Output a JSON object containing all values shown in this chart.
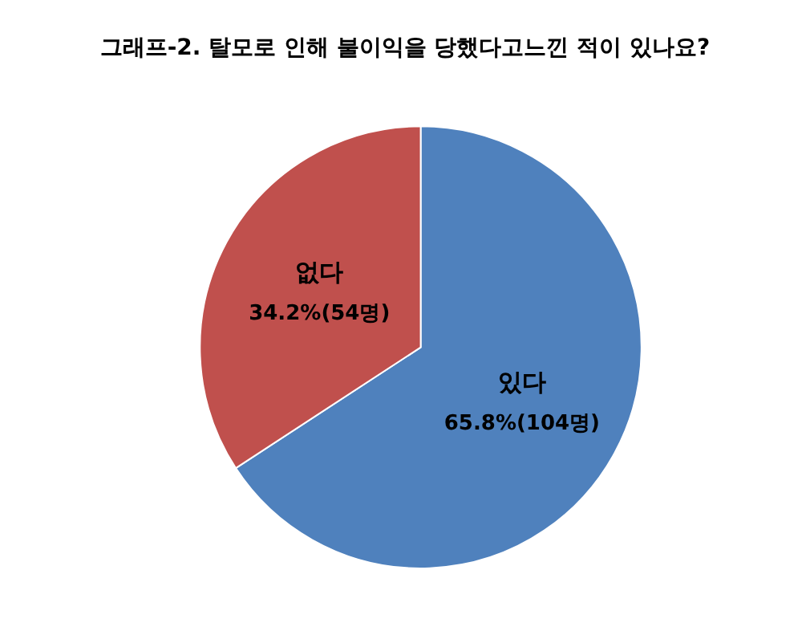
{
  "chart_data": {
    "type": "pie",
    "title": "그래프-2. 탈모로 인해 불이익을 당했다고느낀 적이 있나요?",
    "categories": [
      "있다",
      "없다"
    ],
    "values": [
      65.8,
      34.2
    ],
    "colors": [
      "#4f81bd",
      "#c0504d"
    ],
    "value_labels": [
      "65.8%(104명)",
      "34.2%(54명)"
    ],
    "legend": false
  }
}
